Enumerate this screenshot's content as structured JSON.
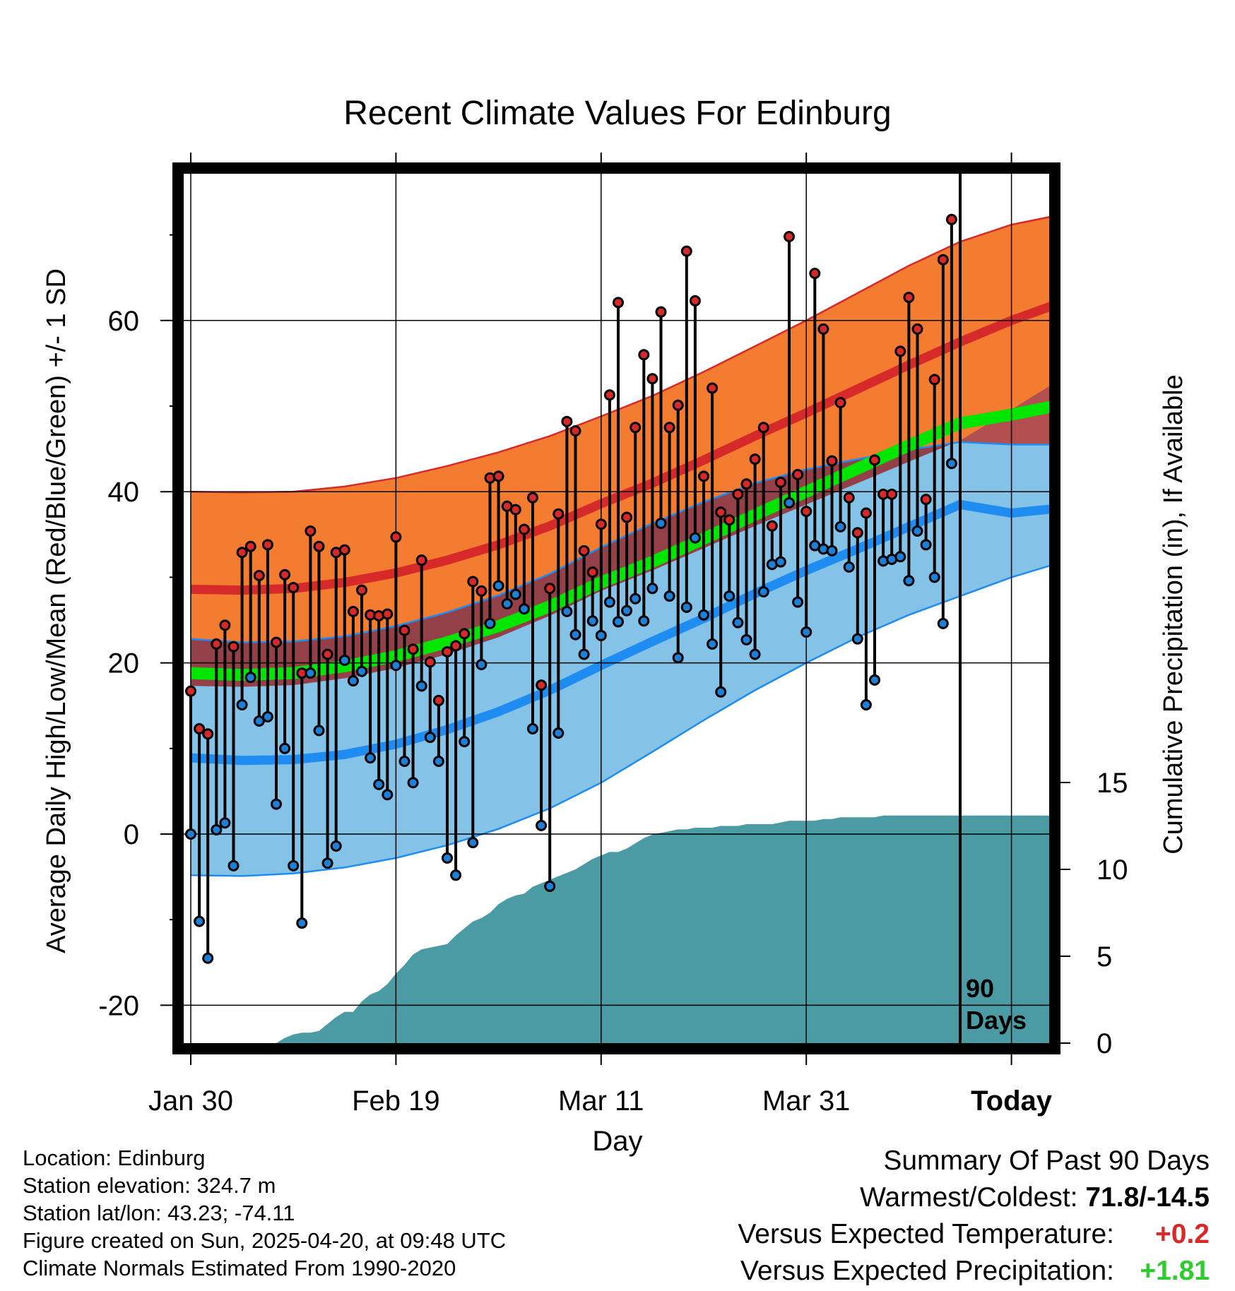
{
  "chart_data": {
    "type": "line",
    "title": "Recent Climate Values For Edinburg",
    "xlabel": "Day",
    "ylabel": "Average Daily High/Low/Mean (Red/Blue/Green) +/- 1 SD",
    "y2label": "Cumulative Precipitation (in), If Available",
    "ylim": [
      -24,
      76
    ],
    "y2lim": [
      0,
      20
    ],
    "yticks": [
      -20,
      0,
      20,
      40,
      60
    ],
    "y2ticks": [
      0,
      5,
      10,
      15
    ],
    "xticks": [
      "Jan 30",
      "Feb 19",
      "Mar 11",
      "Mar 31",
      "Today"
    ],
    "today_marker_label": [
      "90",
      "Days"
    ],
    "grid": true,
    "colors": {
      "high_band": "#f47c30",
      "high_mean_line": "#d62a2a",
      "low_band": "#84c2e8",
      "low_mean_line": "#1e8cf0",
      "mean_line": "#00e600",
      "overlap": "#981414",
      "precip": "#4a9ba3",
      "high_point": "#d62a2a",
      "low_point": "#1e7fd6",
      "positive_temp": "#d62a2a",
      "positive_precip": "#2ecc2e"
    },
    "normals": {
      "days": [
        0,
        6,
        12,
        18,
        24,
        30,
        36,
        42,
        48,
        54,
        60,
        66,
        72,
        78,
        84,
        90,
        96,
        101
      ],
      "high": [
        28.6,
        28.5,
        28.7,
        29.4,
        30.5,
        32.0,
        33.8,
        36.0,
        38.6,
        41.0,
        43.7,
        46.5,
        49.2,
        52.0,
        54.8,
        57.5,
        60.0,
        61.8
      ],
      "high_plus_sd": [
        40.0,
        39.9,
        40.0,
        40.6,
        41.6,
        43.0,
        44.6,
        46.5,
        48.8,
        51.2,
        54.0,
        57.0,
        60.0,
        63.2,
        66.4,
        69.2,
        71.2,
        72.2
      ],
      "high_minus_sd": [
        17.3,
        17.2,
        17.4,
        18.2,
        19.4,
        21.0,
        23.0,
        25.5,
        28.4,
        30.8,
        33.4,
        36.0,
        38.5,
        41.0,
        43.5,
        46.0,
        49.6,
        52.7
      ],
      "mean": [
        18.8,
        18.6,
        18.8,
        19.6,
        20.8,
        22.4,
        24.3,
        26.6,
        29.4,
        31.8,
        34.5,
        37.3,
        40.0,
        42.7,
        45.4,
        48.0,
        49.0,
        50.0
      ],
      "low": [
        8.9,
        8.6,
        8.7,
        9.3,
        10.5,
        12.2,
        14.3,
        16.8,
        19.7,
        22.5,
        25.2,
        28.1,
        30.8,
        33.3,
        35.9,
        38.5,
        37.5,
        38.0
      ],
      "low_plus_sd": [
        22.8,
        22.4,
        22.5,
        23.1,
        24.3,
        25.9,
        27.9,
        30.4,
        33.5,
        36.3,
        38.8,
        41.0,
        42.6,
        43.8,
        44.9,
        45.8,
        45.5,
        45.5
      ],
      "low_minus_sd": [
        -4.8,
        -4.9,
        -4.6,
        -3.9,
        -2.8,
        -1.3,
        0.6,
        3.0,
        6.0,
        9.6,
        13.3,
        16.8,
        20.0,
        23.0,
        25.6,
        27.8,
        30.0,
        31.5
      ]
    },
    "daily": {
      "high": [
        16.7,
        12.3,
        11.7,
        22.2,
        24.4,
        21.9,
        32.9,
        33.6,
        30.2,
        33.8,
        22.4,
        30.3,
        28.8,
        18.8,
        35.4,
        33.6,
        21.0,
        32.9,
        33.2,
        26.0,
        28.5,
        25.6,
        25.5,
        25.7,
        34.7,
        23.8,
        21.6,
        32.0,
        20.1,
        15.6,
        21.3,
        22.0,
        23.4,
        29.5,
        28.4,
        41.6,
        41.8,
        38.3,
        37.9,
        35.6,
        39.3,
        17.4,
        28.7,
        37.4,
        48.2,
        47.1,
        33.1,
        30.6,
        36.2,
        51.3,
        62.1,
        37.0,
        47.5,
        56.0,
        53.2,
        61.0,
        47.5,
        50.1,
        68.1,
        62.3,
        41.8,
        52.1,
        37.6,
        36.7,
        39.7,
        40.9,
        43.8,
        47.5,
        36.0,
        41.1,
        69.8,
        42.0,
        37.7,
        65.5,
        59.0,
        43.6,
        50.4,
        39.3,
        35.2,
        37.5,
        43.7,
        39.7,
        39.7,
        56.4,
        62.7,
        59.0,
        39.1,
        53.1,
        67.1,
        71.8
      ],
      "low": [
        0.0,
        -10.2,
        -14.5,
        0.5,
        1.3,
        -3.7,
        15.1,
        18.3,
        13.2,
        13.7,
        3.5,
        10.0,
        -3.7,
        -10.4,
        18.8,
        12.1,
        -3.4,
        -1.4,
        20.3,
        17.9,
        19.0,
        8.9,
        5.8,
        4.6,
        19.7,
        8.5,
        6.0,
        17.3,
        11.3,
        8.5,
        -2.8,
        -4.8,
        10.8,
        -1.0,
        19.8,
        24.6,
        29.0,
        26.9,
        28.0,
        26.3,
        12.3,
        1.0,
        -6.1,
        11.8,
        26.0,
        23.3,
        21.0,
        24.9,
        23.2,
        27.1,
        24.8,
        26.1,
        27.5,
        24.9,
        28.7,
        36.3,
        27.8,
        20.6,
        26.5,
        34.6,
        25.6,
        22.2,
        16.6,
        27.8,
        24.7,
        22.7,
        21.0,
        28.3,
        31.5,
        31.8,
        38.7,
        27.1,
        23.6,
        33.7,
        33.3,
        33.1,
        35.9,
        31.2,
        22.8,
        15.1,
        18.0,
        31.9,
        32.1,
        32.4,
        29.6,
        35.4,
        33.8,
        30.0,
        24.6,
        43.3
      ]
    },
    "precip": {
      "days": [
        0,
        10,
        11,
        12,
        13,
        14,
        15,
        16,
        17,
        18,
        19,
        20,
        21,
        22,
        23,
        24,
        25,
        26,
        27,
        28,
        29,
        30,
        31,
        32,
        33,
        34,
        35,
        36,
        37,
        38,
        39,
        40,
        41,
        42,
        43,
        44,
        45,
        46,
        47,
        48,
        49,
        50,
        51,
        52,
        53,
        54,
        55,
        56,
        57,
        58,
        59,
        60,
        61,
        62,
        63,
        64,
        65,
        66,
        67,
        68,
        69,
        70,
        71,
        72,
        73,
        74,
        75,
        76,
        77,
        78,
        79,
        80,
        81,
        82,
        83,
        84,
        85,
        86,
        87,
        88,
        89,
        90,
        101
      ],
      "values": [
        0.0,
        0.0,
        0.3,
        0.5,
        0.6,
        0.6,
        0.7,
        1.1,
        1.5,
        1.8,
        1.8,
        2.4,
        2.8,
        3.0,
        3.4,
        4.0,
        4.5,
        5.1,
        5.4,
        5.5,
        5.6,
        5.7,
        6.2,
        6.6,
        7.0,
        7.2,
        7.5,
        8.0,
        8.3,
        8.5,
        8.6,
        9.0,
        9.2,
        9.4,
        9.6,
        9.8,
        10.0,
        10.3,
        10.6,
        10.8,
        11.0,
        11.0,
        11.2,
        11.5,
        11.8,
        12.0,
        12.1,
        12.2,
        12.3,
        12.3,
        12.4,
        12.4,
        12.4,
        12.5,
        12.5,
        12.5,
        12.6,
        12.6,
        12.6,
        12.6,
        12.7,
        12.8,
        12.8,
        12.8,
        12.8,
        12.9,
        12.9,
        13.0,
        13.0,
        13.0,
        13.0,
        13.0,
        13.1,
        13.1,
        13.1,
        13.1,
        13.1,
        13.1,
        13.1,
        13.1,
        13.1,
        13.1,
        13.1
      ],
      "note_scale": "secondary axis"
    },
    "today_index": 90
  },
  "footer": {
    "location": "Location: Edinburg",
    "elevation": "Station elevation: 324.7 m",
    "latlon": "Station lat/lon: 43.23; -74.11",
    "created": "Figure created on Sun, 2025-04-20, at 09:48 UTC",
    "normals": "Climate Normals Estimated From 1990-2020"
  },
  "summary": {
    "heading": "Summary Of Past 90 Days",
    "warm_cold_label": "Warmest/Coldest: ",
    "warm_cold_value": "71.8/-14.5",
    "temp_label": "Versus Expected Temperature:",
    "temp_value": "+0.2",
    "precip_label": "Versus Expected Precipitation:",
    "precip_value": "+1.81"
  }
}
